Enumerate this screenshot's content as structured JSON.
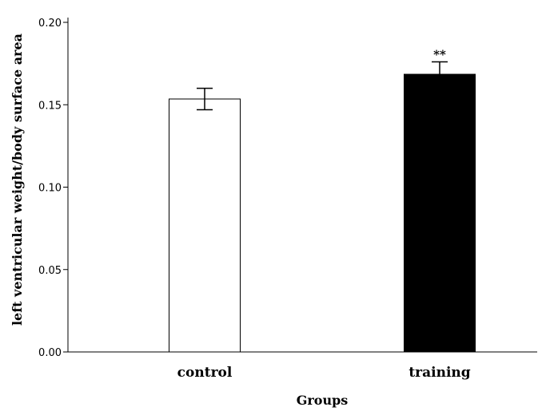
{
  "chart_data": {
    "type": "bar",
    "title": "",
    "xlabel": "Groups",
    "ylabel": "left ventricular weight/body surface area",
    "ylim": [
      0,
      0.2
    ],
    "yticks": [
      "0.00",
      "0.05",
      "0.10",
      "0.15",
      "0.20"
    ],
    "categories": [
      "control",
      "training"
    ],
    "values": [
      0.1535,
      0.1685
    ],
    "error": [
      0.0065,
      0.0075
    ],
    "bar_colors": [
      "#ffffff",
      "#000000"
    ],
    "annotations": [
      "",
      "**"
    ],
    "grid": false
  }
}
